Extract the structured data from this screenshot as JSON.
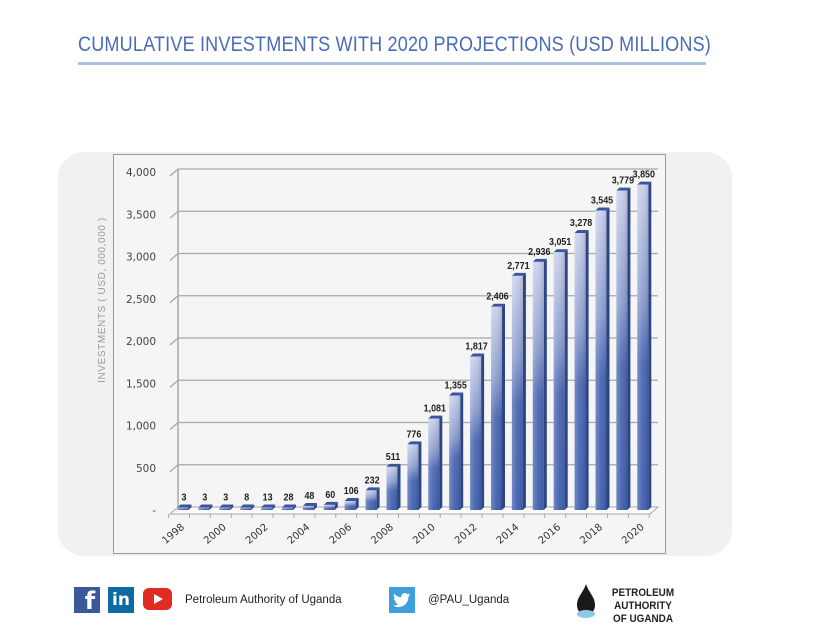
{
  "header": {
    "title": "CUMULATIVE INVESTMENTS WITH 2020 PROJECTIONS (USD MILLIONS)"
  },
  "chart_data": {
    "type": "bar",
    "title": "CUMULATIVE INVESTMENTS WITH 2020 PROJECTIONS (USD MILLIONS)",
    "xlabel": "",
    "ylabel": "INVESTMENTS ( USD, 000,000 )",
    "ylim": [
      0,
      4000
    ],
    "grid": true,
    "style": "3d-column",
    "x": [
      "1998",
      "1999",
      "2000",
      "2001",
      "2002",
      "2003",
      "2004",
      "2005",
      "2006",
      "2007",
      "2008",
      "2009",
      "2010",
      "2011",
      "2012",
      "2013",
      "2014",
      "2015",
      "2016",
      "2017",
      "2018",
      "2019",
      "2020"
    ],
    "values": [
      3,
      3,
      3,
      8,
      13,
      28,
      48,
      60,
      106,
      232,
      511,
      776,
      1081,
      1355,
      1817,
      2406,
      2771,
      2936,
      3051,
      3278,
      3545,
      3779,
      3850
    ],
    "data_labels": [
      "3",
      "3",
      "3",
      "8",
      "13",
      "28",
      "48",
      "60",
      "106",
      "232",
      "511",
      "776",
      "1,081",
      "1,355",
      "1,817",
      "2,406",
      "2,771",
      "2,936",
      "3,051",
      "3,278",
      "3,545",
      "3,779",
      "3,850"
    ],
    "x_tick_labels": [
      "1998",
      "2000",
      "2002",
      "2004",
      "2006",
      "2008",
      "2010",
      "2012",
      "2014",
      "2016",
      "2018",
      "2020"
    ],
    "y_ticks": [
      0,
      500,
      1000,
      1500,
      2000,
      2500,
      3000,
      3500,
      4000
    ],
    "y_tick_labels": [
      "-",
      "500",
      "1,000",
      "1,500",
      "2,000",
      "2,500",
      "3,000",
      "3,500",
      "4,000"
    ],
    "bar_color": "#3f5fae"
  },
  "footer": {
    "social_name": "Petroleum Authority of Uganda",
    "twitter_handle": "@PAU_Uganda",
    "logo_line1": "PETROLEUM AUTHORITY",
    "logo_line2": "OF UGANDA",
    "icons": [
      "facebook-icon",
      "linkedin-icon",
      "youtube-icon",
      "twitter-icon"
    ]
  }
}
